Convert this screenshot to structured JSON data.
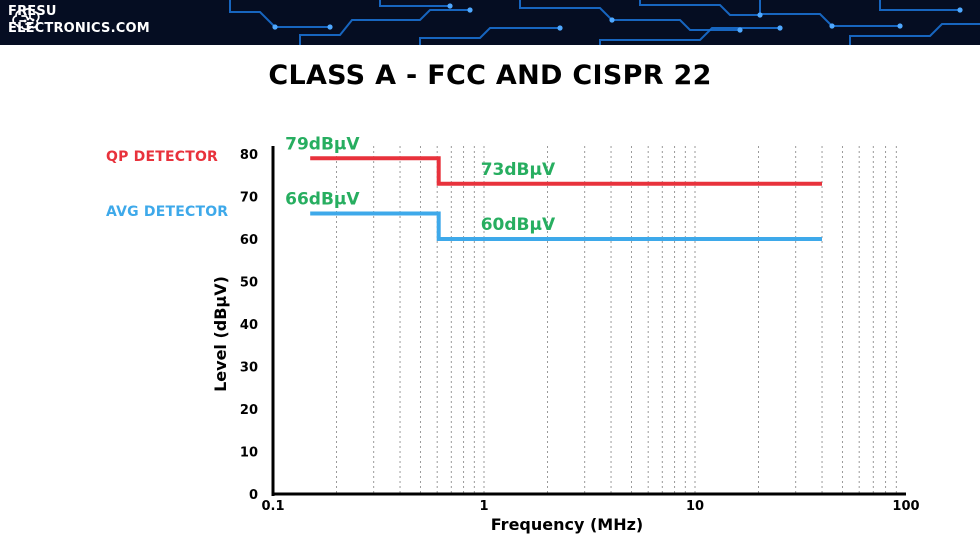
{
  "brand": {
    "line1": "FRESU",
    "line2": "ELECTRONICS.COM",
    "icon": "brain-circuit-icon",
    "banner_color": "#050d22",
    "trace_color": "#1a6fd0"
  },
  "chart_data": {
    "type": "line",
    "title": "CLASS A - FCC AND CISPR 22",
    "xlabel": "Frequency (MHz)",
    "ylabel": "Level (dBµV)",
    "xscale": "log",
    "xlim": [
      0.1,
      100
    ],
    "ylim": [
      0,
      80
    ],
    "yticks": [
      0,
      10,
      20,
      30,
      40,
      50,
      60,
      70,
      80
    ],
    "ytick_labels": [
      "0",
      "10",
      "20",
      "30",
      "40",
      "50",
      "60",
      "70",
      "80"
    ],
    "xticks": [
      0.1,
      1,
      10,
      100
    ],
    "xtick_labels": [
      "0.1",
      "1",
      "10",
      "100"
    ],
    "grid": "vertical minor gridlines (dotted)",
    "legend_placement": "left of y-axis",
    "series": [
      {
        "name": "QP DETECTOR",
        "color": "#e8323c",
        "x": [
          0.15,
          0.61,
          0.61,
          40
        ],
        "y": [
          79,
          79,
          73,
          73
        ]
      },
      {
        "name": "AVG DETECTOR",
        "color": "#3ea9ea",
        "x": [
          0.15,
          0.61,
          0.61,
          40
        ],
        "y": [
          66,
          66,
          60,
          60
        ]
      }
    ],
    "annotations": [
      {
        "text": "79dBµV",
        "x": 0.15,
        "y": 79,
        "color": "#27ae60"
      },
      {
        "text": "73dBµV",
        "x": 0.61,
        "y": 73,
        "color": "#27ae60"
      },
      {
        "text": "66dBµV",
        "x": 0.15,
        "y": 66,
        "color": "#27ae60"
      },
      {
        "text": "60dBµV",
        "x": 0.61,
        "y": 60,
        "color": "#27ae60"
      }
    ]
  }
}
